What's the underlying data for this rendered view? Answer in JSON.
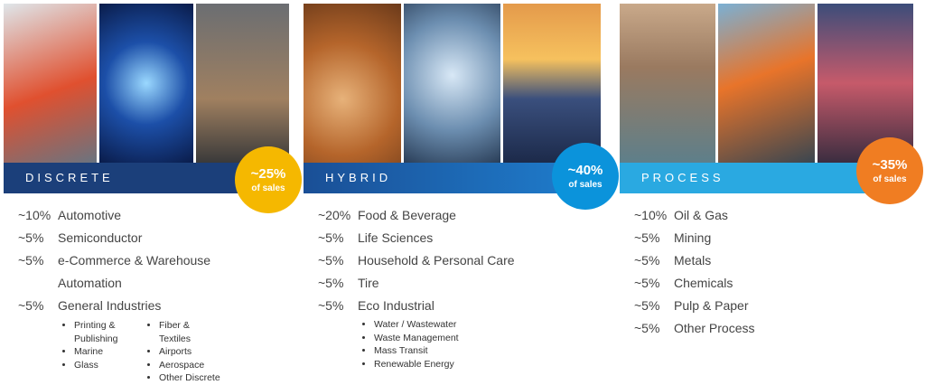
{
  "columns": [
    {
      "title": "DISCRETE",
      "badge": {
        "value": "~25%",
        "label": "of sales"
      },
      "items": [
        {
          "share": "~10%",
          "name": "Automotive"
        },
        {
          "share": "~5%",
          "name": "Semiconductor"
        },
        {
          "share": "~5%",
          "name": "e-Commerce & Warehouse Automation"
        },
        {
          "share": "~5%",
          "name": "General Industries"
        }
      ],
      "subitems": [
        [
          "Printing & Publishing",
          "Marine",
          "Glass"
        ],
        [
          "Fiber & Textiles",
          "Airports",
          "Aerospace",
          "Other Discrete"
        ]
      ]
    },
    {
      "title": "HYBRID",
      "badge": {
        "value": "~40%",
        "label": "of sales"
      },
      "items": [
        {
          "share": "~20%",
          "name": "Food & Beverage"
        },
        {
          "share": "~5%",
          "name": "Life Sciences"
        },
        {
          "share": "~5%",
          "name": "Household & Personal Care"
        },
        {
          "share": "~5%",
          "name": "Tire"
        },
        {
          "share": "~5%",
          "name": "Eco Industrial"
        }
      ],
      "subitems": [
        [
          "Water / Wastewater",
          "Waste Management",
          "Mass Transit",
          "Renewable Energy"
        ]
      ]
    },
    {
      "title": "PROCESS",
      "badge": {
        "value": "~35%",
        "label": "of sales"
      },
      "items": [
        {
          "share": "~10%",
          "name": "Oil & Gas"
        },
        {
          "share": "~5%",
          "name": "Mining"
        },
        {
          "share": "~5%",
          "name": "Metals"
        },
        {
          "share": "~5%",
          "name": "Chemicals"
        },
        {
          "share": "~5%",
          "name": "Pulp & Paper"
        },
        {
          "share": "~5%",
          "name": "Other Process"
        }
      ],
      "subitems": []
    }
  ]
}
